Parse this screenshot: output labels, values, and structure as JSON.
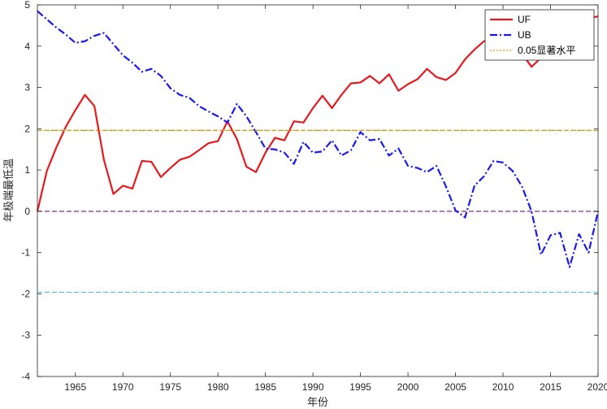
{
  "chart_data": {
    "type": "line",
    "xlabel": "年份",
    "ylabel": "年极端最低温",
    "xlim": [
      1961,
      2020
    ],
    "ylim": [
      -4,
      5
    ],
    "x_ticks": [
      1965,
      1970,
      1975,
      1980,
      1985,
      1990,
      1995,
      2000,
      2005,
      2010,
      2015,
      2020
    ],
    "y_ticks": [
      -4,
      -3,
      -2,
      -1,
      0,
      1,
      2,
      3,
      4,
      5
    ],
    "grid": false,
    "legend_position": "top-right",
    "x": [
      1961,
      1962,
      1963,
      1964,
      1965,
      1966,
      1967,
      1968,
      1969,
      1970,
      1971,
      1972,
      1973,
      1974,
      1975,
      1976,
      1977,
      1978,
      1979,
      1980,
      1981,
      1982,
      1983,
      1984,
      1985,
      1986,
      1987,
      1988,
      1989,
      1990,
      1991,
      1992,
      1993,
      1994,
      1995,
      1996,
      1997,
      1998,
      1999,
      2000,
      2001,
      2002,
      2003,
      2004,
      2005,
      2006,
      2007,
      2008,
      2009,
      2010,
      2011,
      2012,
      2013,
      2014,
      2015,
      2016,
      2017,
      2018,
      2019,
      2020
    ],
    "series": [
      {
        "name": "UF",
        "color": "#e8191d",
        "dash": "solid",
        "values": [
          0,
          0.98,
          1.55,
          2.05,
          2.45,
          2.82,
          2.55,
          1.25,
          0.42,
          0.62,
          0.55,
          1.22,
          1.2,
          0.83,
          1.05,
          1.25,
          1.32,
          1.48,
          1.65,
          1.7,
          2.18,
          1.75,
          1.08,
          0.95,
          1.42,
          1.78,
          1.72,
          2.18,
          2.15,
          2.5,
          2.8,
          2.5,
          2.82,
          3.1,
          3.12,
          3.28,
          3.1,
          3.32,
          2.92,
          3.08,
          3.2,
          3.45,
          3.25,
          3.18,
          3.35,
          3.68,
          3.92,
          4.12,
          4.18,
          4.05,
          3.88,
          3.82,
          3.5,
          3.72,
          4.05,
          4.22,
          4.38,
          4.55,
          4.68,
          4.72
        ]
      },
      {
        "name": "UB",
        "color": "#1a1aee",
        "dash": "dashdot",
        "values": [
          4.85,
          4.65,
          4.45,
          4.28,
          4.08,
          4.12,
          4.25,
          4.32,
          4.05,
          3.78,
          3.6,
          3.38,
          3.45,
          3.28,
          2.98,
          2.82,
          2.75,
          2.55,
          2.42,
          2.3,
          2.15,
          2.6,
          2.3,
          1.92,
          1.52,
          1.5,
          1.42,
          1.15,
          1.68,
          1.42,
          1.45,
          1.72,
          1.35,
          1.48,
          1.92,
          1.72,
          1.75,
          1.35,
          1.52,
          1.1,
          1.05,
          0.95,
          1.1,
          0.6,
          0.02,
          -0.15,
          0.62,
          0.85,
          1.22,
          1.18,
          0.98,
          0.6,
          0,
          -1.05,
          -0.58,
          -0.52,
          -1.35,
          -0.55,
          -1,
          0
        ]
      },
      {
        "name": "0.05显著水平",
        "color": "#f5a623",
        "dash": "dotted",
        "values": [
          1.96,
          1.96,
          1.96,
          1.96,
          1.96,
          1.96,
          1.96,
          1.96,
          1.96,
          1.96,
          1.96,
          1.96,
          1.96,
          1.96,
          1.96,
          1.96,
          1.96,
          1.96,
          1.96,
          1.96,
          1.96,
          1.96,
          1.96,
          1.96,
          1.96,
          1.96,
          1.96,
          1.96,
          1.96,
          1.96,
          1.96,
          1.96,
          1.96,
          1.96,
          1.96,
          1.96,
          1.96,
          1.96,
          1.96,
          1.96,
          1.96,
          1.96,
          1.96,
          1.96,
          1.96,
          1.96,
          1.96,
          1.96,
          1.96,
          1.96,
          1.96,
          1.96,
          1.96,
          1.96,
          1.96,
          1.96,
          1.96,
          1.96,
          1.96,
          1.96
        ]
      }
    ],
    "reference_lines": [
      {
        "y": 1.96,
        "color": "#77ac30",
        "dash": "dashed"
      },
      {
        "y": 0,
        "color": "#7e2f8e",
        "dash": "dashed"
      },
      {
        "y": -1.96,
        "color": "#4dbeee",
        "dash": "dashed"
      }
    ]
  }
}
